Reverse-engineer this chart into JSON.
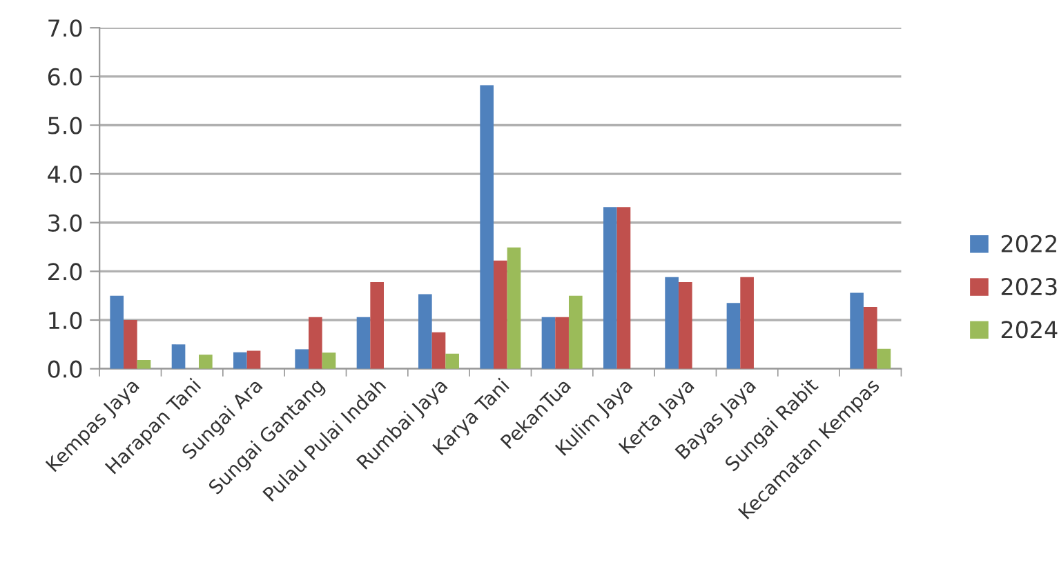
{
  "chart_data": {
    "type": "bar",
    "categories": [
      "Kempas Jaya",
      "Harapan Tani",
      "Sungai Ara",
      "Sungai Gantang",
      "Pulau Pulai Indah",
      "Rumbai Jaya",
      "Karya Tani",
      "PekanTua",
      "Kulim Jaya",
      "Kerta Jaya",
      "Bayas Jaya",
      "Sungai Rabit",
      "Kecamatan Kempas"
    ],
    "series": [
      {
        "name": "2022",
        "color": "#4f81bd",
        "values": [
          1.5,
          0.5,
          0.34,
          0.4,
          1.06,
          1.53,
          5.82,
          1.06,
          3.32,
          1.88,
          1.35,
          null,
          1.56
        ]
      },
      {
        "name": "2023",
        "color": "#c0504d",
        "values": [
          1.0,
          null,
          0.37,
          1.06,
          1.78,
          0.75,
          2.22,
          1.06,
          3.32,
          1.78,
          1.88,
          null,
          1.27
        ]
      },
      {
        "name": "2024",
        "color": "#9bbb59",
        "values": [
          0.18,
          0.29,
          null,
          0.33,
          null,
          0.31,
          2.49,
          1.5,
          null,
          null,
          null,
          null,
          0.41
        ]
      }
    ],
    "ylim": [
      0,
      7
    ],
    "yticks": [
      {
        "value": 0,
        "label": "0.0"
      },
      {
        "value": 1,
        "label": "1.0"
      },
      {
        "value": 2,
        "label": "2.0"
      },
      {
        "value": 3,
        "label": "3.0"
      },
      {
        "value": 4,
        "label": "4.0"
      },
      {
        "value": 5,
        "label": "5.0"
      },
      {
        "value": 6,
        "label": "6.0"
      },
      {
        "value": 7,
        "label": "7.0"
      }
    ],
    "grid": "y",
    "legend": "right"
  }
}
